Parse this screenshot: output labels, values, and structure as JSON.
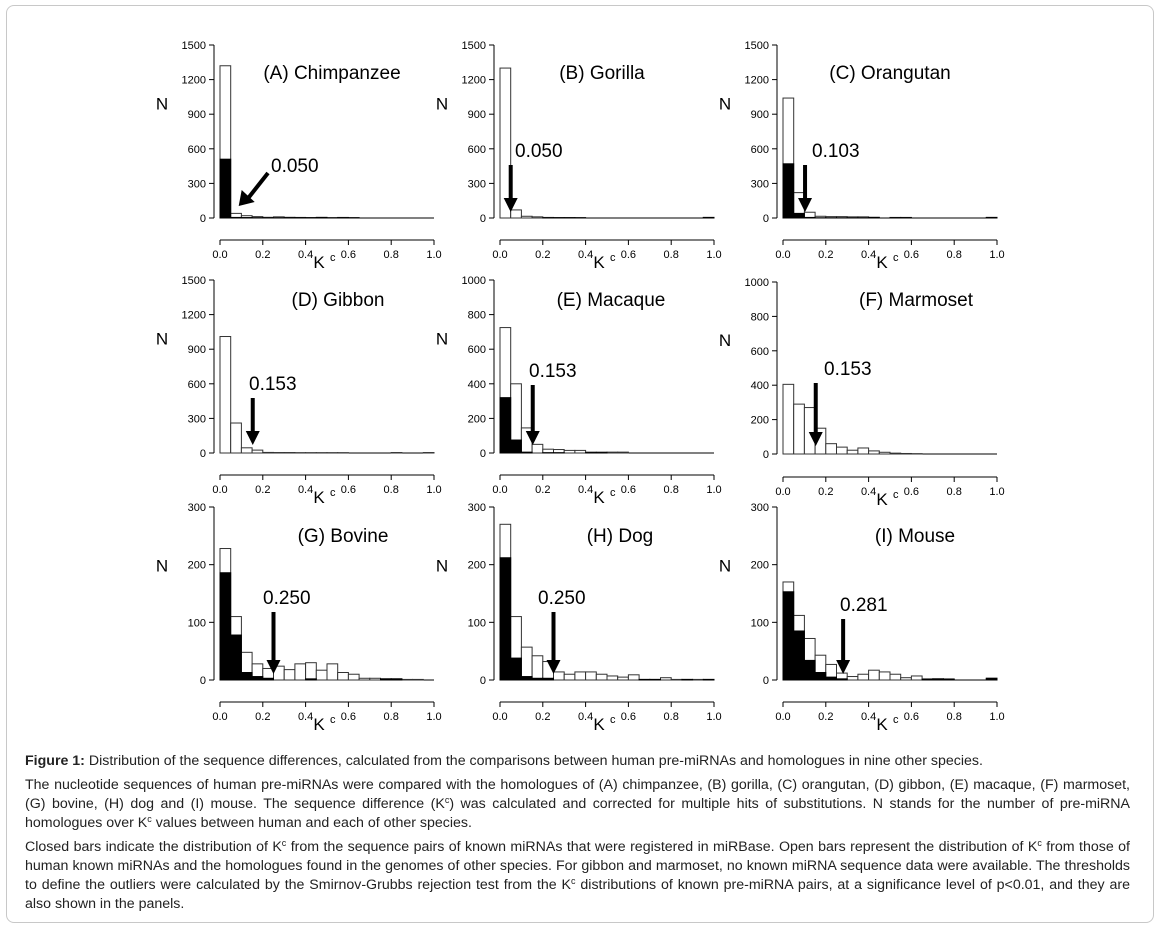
{
  "chart_data": [
    {
      "type": "bar",
      "panel": "A",
      "title": "(A) Chimpanzee",
      "xlabel": "K^c",
      "ylabel": "N",
      "xlim": [
        0,
        1.0
      ],
      "ylim": [
        0,
        1500
      ],
      "xticks": [
        "0.0",
        "0.2",
        "0.4",
        "0.6",
        "0.8",
        "1.0"
      ],
      "yticks": [
        "0",
        "300",
        "600",
        "900",
        "1200",
        "1500"
      ],
      "bin_width": 0.05,
      "open_values": [
        1320,
        40,
        20,
        12,
        6,
        10,
        6,
        5,
        4,
        6,
        3,
        5,
        3,
        0,
        0,
        0,
        0,
        0,
        0,
        0
      ],
      "closed_values": [
        510,
        5,
        4,
        3,
        2,
        2,
        3,
        3,
        2,
        4,
        1,
        3,
        2,
        0,
        0,
        0,
        0,
        0,
        0,
        0
      ],
      "threshold": {
        "value": 0.05,
        "label": "0.050",
        "arrow": "diagonal"
      }
    },
    {
      "type": "bar",
      "panel": "B",
      "title": "(B) Gorilla",
      "xlabel": "K^c",
      "ylabel": "N",
      "xlim": [
        0,
        1.0
      ],
      "ylim": [
        0,
        1500
      ],
      "xticks": [
        "0.0",
        "0.2",
        "0.4",
        "0.6",
        "0.8",
        "1.0"
      ],
      "yticks": [
        "0",
        "300",
        "600",
        "900",
        "1200",
        "1500"
      ],
      "bin_width": 0.05,
      "open_values": [
        1300,
        70,
        15,
        10,
        5,
        4,
        4,
        3,
        0,
        0,
        0,
        0,
        0,
        0,
        0,
        0,
        0,
        0,
        0,
        5
      ],
      "closed_values": [
        0,
        0,
        0,
        0,
        2,
        2,
        2,
        2,
        0,
        0,
        0,
        0,
        0,
        0,
        0,
        0,
        0,
        0,
        0,
        5
      ],
      "threshold": {
        "value": 0.05,
        "label": "0.050",
        "arrow": "down"
      }
    },
    {
      "type": "bar",
      "panel": "C",
      "title": "(C) Orangutan",
      "xlabel": "K^c",
      "ylabel": "N",
      "xlim": [
        0,
        1.0
      ],
      "ylim": [
        0,
        1500
      ],
      "xticks": [
        "0.0",
        "0.2",
        "0.4",
        "0.6",
        "0.8",
        "1.0"
      ],
      "yticks": [
        "0",
        "300",
        "600",
        "900",
        "1200",
        "1500"
      ],
      "bin_width": 0.05,
      "open_values": [
        1040,
        220,
        50,
        15,
        12,
        12,
        10,
        10,
        6,
        0,
        5,
        5,
        0,
        0,
        0,
        0,
        0,
        0,
        0,
        5
      ],
      "closed_values": [
        470,
        40,
        5,
        2,
        2,
        2,
        2,
        2,
        5,
        0,
        3,
        3,
        0,
        0,
        0,
        0,
        0,
        0,
        0,
        5
      ],
      "threshold": {
        "value": 0.103,
        "label": "0.103",
        "arrow": "down"
      }
    },
    {
      "type": "bar",
      "panel": "D",
      "title": "(D) Gibbon",
      "xlabel": "K^c",
      "ylabel": "N",
      "xlim": [
        0,
        1.0
      ],
      "ylim": [
        0,
        1500
      ],
      "xticks": [
        "0.0",
        "0.2",
        "0.4",
        "0.6",
        "0.8",
        "1.0"
      ],
      "yticks": [
        "0",
        "300",
        "600",
        "900",
        "1200",
        "1500"
      ],
      "bin_width": 0.05,
      "open_values": [
        1010,
        260,
        45,
        25,
        5,
        4,
        4,
        3,
        3,
        3,
        3,
        3,
        0,
        0,
        0,
        0,
        4,
        0,
        0,
        4
      ],
      "closed_values": [],
      "threshold": {
        "value": 0.153,
        "label": "0.153",
        "arrow": "down"
      }
    },
    {
      "type": "bar",
      "panel": "E",
      "title": "(E) Macaque",
      "xlabel": "K^c",
      "ylabel": "N",
      "xlim": [
        0,
        1.0
      ],
      "ylim": [
        0,
        1000
      ],
      "xticks": [
        "0.0",
        "0.2",
        "0.4",
        "0.6",
        "0.8",
        "1.0"
      ],
      "yticks": [
        "0",
        "200",
        "400",
        "600",
        "800",
        "1000"
      ],
      "bin_width": 0.05,
      "open_values": [
        725,
        400,
        145,
        50,
        22,
        20,
        15,
        15,
        5,
        5,
        5,
        5,
        0,
        0,
        0,
        0,
        0,
        0,
        0,
        0
      ],
      "closed_values": [
        320,
        75,
        5,
        0,
        2,
        2,
        0,
        0,
        2,
        2,
        0,
        0,
        0,
        0,
        0,
        0,
        0,
        0,
        0,
        0
      ],
      "threshold": {
        "value": 0.153,
        "label": "0.153",
        "arrow": "down"
      }
    },
    {
      "type": "bar",
      "panel": "F",
      "title": "(F) Marmoset",
      "xlabel": "K^c",
      "ylabel": "N",
      "xlim": [
        0,
        1.0
      ],
      "ylim": [
        0,
        1000
      ],
      "xticks": [
        "0.0",
        "0.2",
        "0.4",
        "0.6",
        "0.8",
        "1.0"
      ],
      "yticks": [
        "0",
        "200",
        "400",
        "600",
        "800",
        "1000"
      ],
      "bin_width": 0.05,
      "open_values": [
        405,
        290,
        270,
        150,
        60,
        40,
        22,
        35,
        18,
        10,
        5,
        3,
        2,
        0,
        0,
        0,
        0,
        0,
        0,
        0
      ],
      "closed_values": [],
      "threshold": {
        "value": 0.153,
        "label": "0.153",
        "arrow": "down"
      }
    },
    {
      "type": "bar",
      "panel": "G",
      "title": "(G) Bovine",
      "xlabel": "K^c",
      "ylabel": "N",
      "xlim": [
        0,
        1.0
      ],
      "ylim": [
        0,
        300
      ],
      "xticks": [
        "0.0",
        "0.2",
        "0.4",
        "0.6",
        "0.8",
        "1.0"
      ],
      "yticks": [
        "0",
        "100",
        "200",
        "300"
      ],
      "bin_width": 0.05,
      "open_values": [
        228,
        110,
        48,
        28,
        20,
        24,
        18,
        28,
        30,
        17,
        28,
        13,
        10,
        3,
        3,
        2,
        2,
        1,
        1,
        0
      ],
      "closed_values": [
        186,
        78,
        13,
        6,
        3,
        0,
        0,
        0,
        2,
        0,
        0,
        0,
        0,
        0,
        0,
        2,
        2,
        0,
        0,
        0
      ],
      "threshold": {
        "value": 0.25,
        "label": "0.250",
        "arrow": "down"
      }
    },
    {
      "type": "bar",
      "panel": "H",
      "title": "(H) Dog",
      "xlabel": "K^c",
      "ylabel": "N",
      "xlim": [
        0,
        1.0
      ],
      "ylim": [
        0,
        300
      ],
      "xticks": [
        "0.0",
        "0.2",
        "0.4",
        "0.6",
        "0.8",
        "1.0"
      ],
      "yticks": [
        "0",
        "100",
        "200",
        "300"
      ],
      "bin_width": 0.05,
      "open_values": [
        270,
        110,
        57,
        42,
        32,
        14,
        10,
        14,
        14,
        10,
        7,
        5,
        9,
        1,
        1,
        4,
        1,
        1,
        1,
        1
      ],
      "closed_values": [
        212,
        38,
        6,
        3,
        3,
        0,
        0,
        0,
        0,
        0,
        0,
        0,
        0,
        1,
        1,
        0,
        0,
        1,
        0,
        1
      ],
      "threshold": {
        "value": 0.25,
        "label": "0.250",
        "arrow": "down"
      }
    },
    {
      "type": "bar",
      "panel": "I",
      "title": "(I) Mouse",
      "xlabel": "K^c",
      "ylabel": "N",
      "xlim": [
        0,
        1.0
      ],
      "ylim": [
        0,
        300
      ],
      "xticks": [
        "0.0",
        "0.2",
        "0.4",
        "0.6",
        "0.8",
        "1.0"
      ],
      "yticks": [
        "0",
        "100",
        "200",
        "300"
      ],
      "bin_width": 0.05,
      "open_values": [
        170,
        112,
        72,
        43,
        27,
        12,
        6,
        10,
        17,
        14,
        10,
        4,
        7,
        2,
        2,
        2,
        0,
        0,
        0,
        3
      ],
      "closed_values": [
        153,
        85,
        34,
        13,
        5,
        2,
        0,
        0,
        0,
        0,
        0,
        0,
        0,
        1,
        2,
        1,
        0,
        0,
        0,
        3
      ],
      "threshold": {
        "value": 0.281,
        "label": "0.281",
        "arrow": "down"
      }
    }
  ],
  "caption": {
    "figure_label": "Figure 1:",
    "figure_title": "Distribution of the sequence differences, calculated from the comparisons between human pre-miRNAs and homologues in nine other species.",
    "para1_a": "The nucleotide sequences of human pre-miRNAs were compared with the homologues of (A) chimpanzee, (B) gorilla, (C) orangutan, (D) gibbon, (E) macaque, (F) marmoset, (G) bovine, (H) dog and (I) mouse. The sequence difference (K",
    "para1_b": ") was calculated and corrected for multiple hits of substitutions. N stands for the number of pre-miRNA homologues over K",
    "para1_c": " values between human and each of other species.",
    "para2_a": "Closed bars indicate the distribution of K",
    "para2_b": " from the sequence pairs of known miRNAs that were registered in miRBase. Open bars represent the distribution of K",
    "para2_c": " from those of human known miRNAs and the homologues found in the genomes of other species. For gibbon and marmoset, no known miRNA sequence data were available. The thresholds to define the outliers were calculated by the Smirnov-Grubbs rejection test from the K",
    "para2_d": " distributions of known pre-miRNA pairs, at a significance level of p<0.01, and they are also shown in the panels.",
    "superscript": "c"
  }
}
